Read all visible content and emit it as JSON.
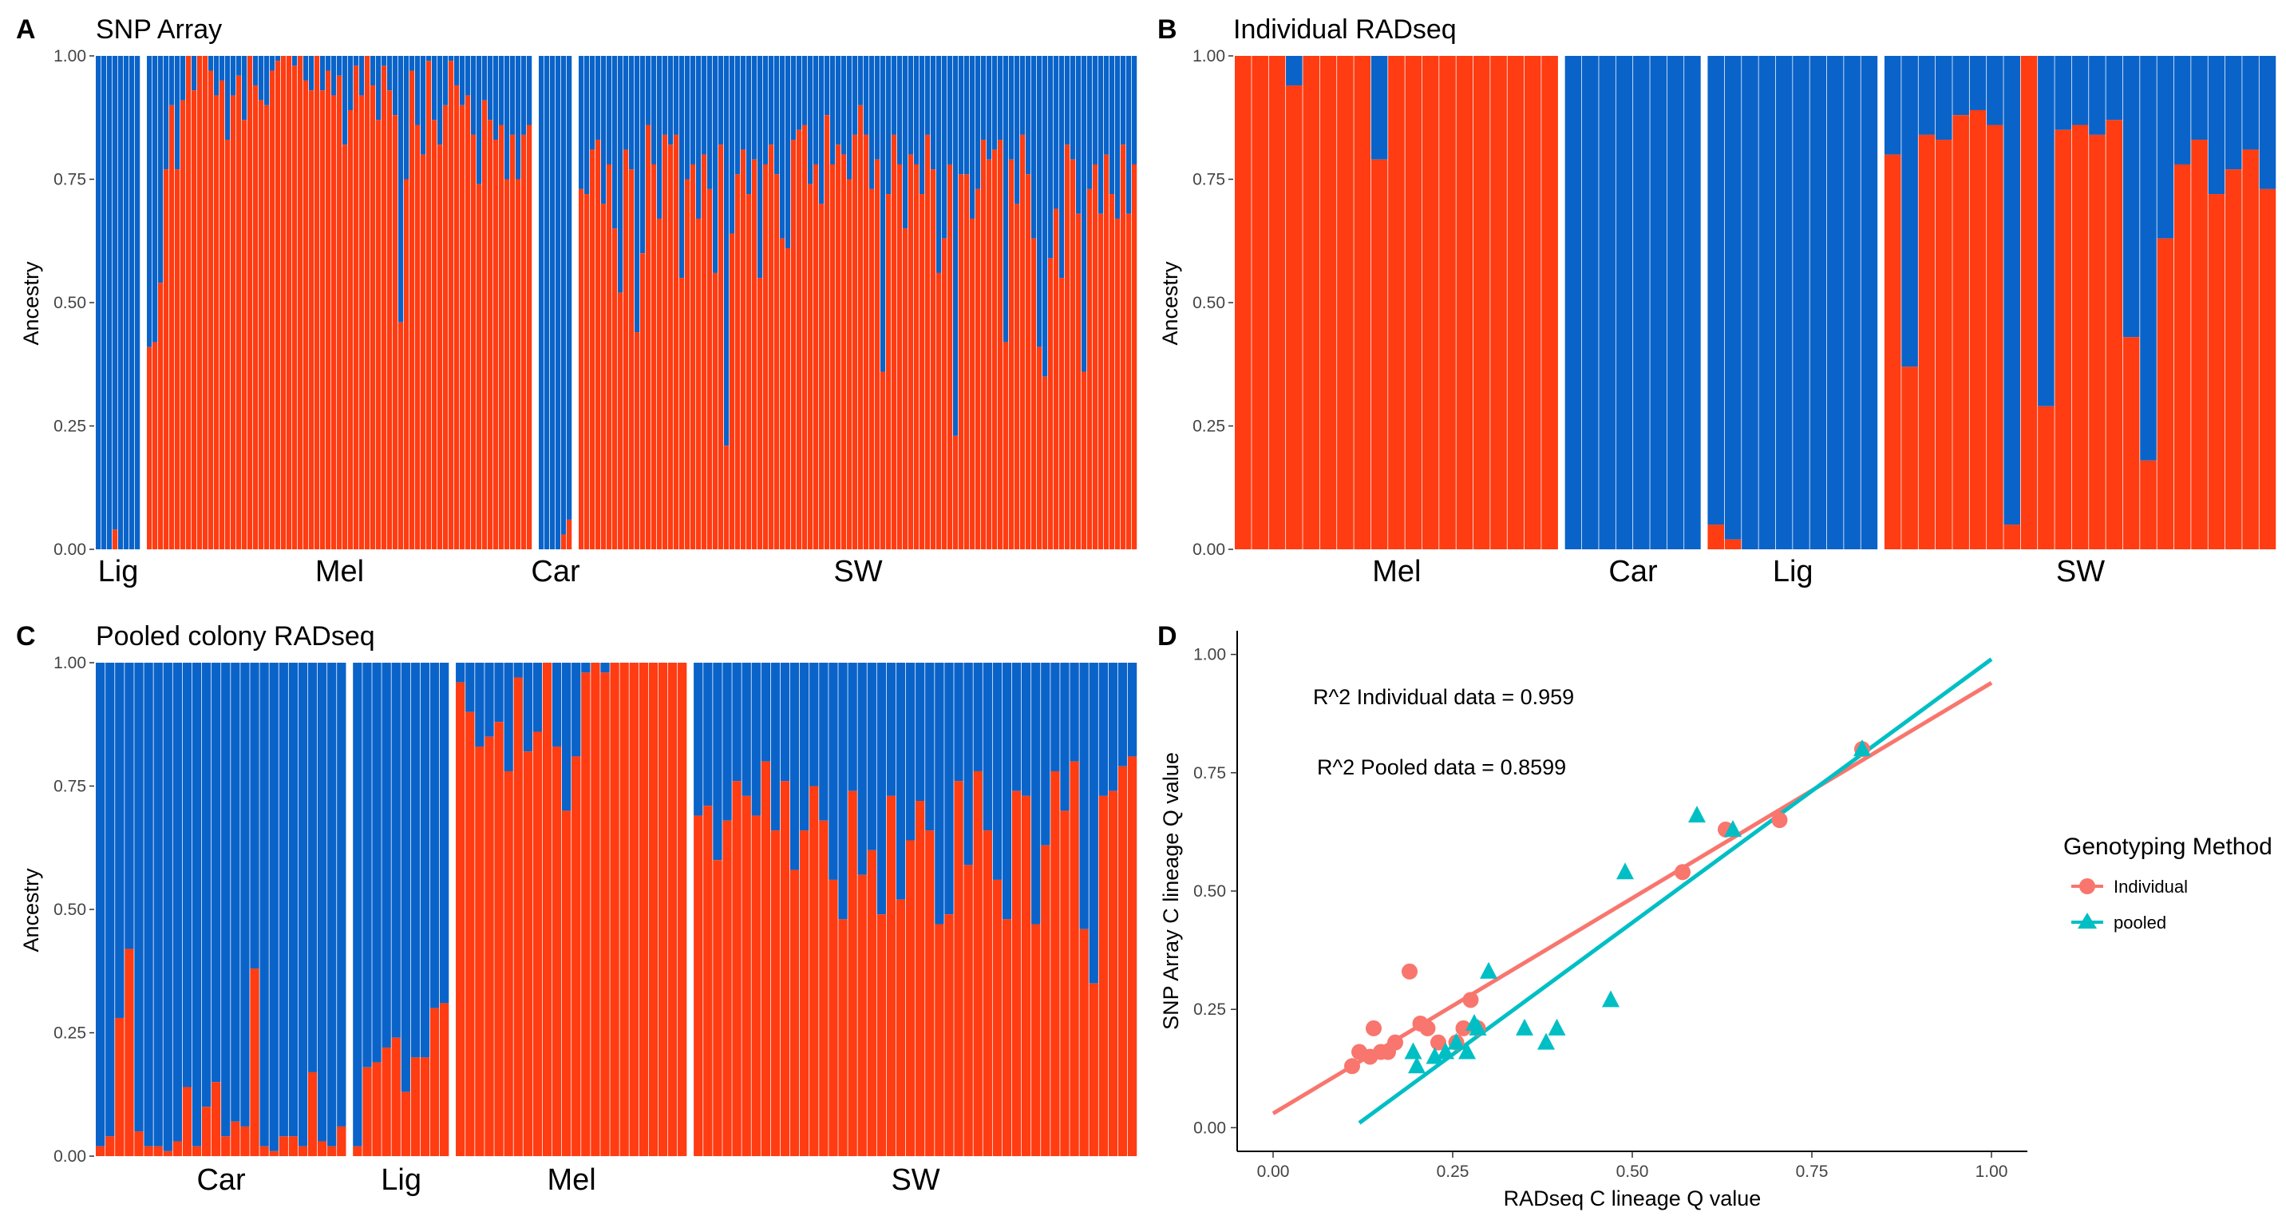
{
  "figure": {
    "colors": {
      "blue": "#0a63c9",
      "red": "#ff3c12",
      "salmon": "#f8766d",
      "teal": "#00bfc4",
      "gap": "#ffffff"
    }
  },
  "chart_data": [
    {
      "panel": "A",
      "title": "SNP Array",
      "type": "bar",
      "stacked": true,
      "ylabel": "Ancestry",
      "ylim": [
        0,
        1
      ],
      "yticks": [
        "0.00",
        "0.25",
        "0.50",
        "0.75",
        "1.00"
      ],
      "series_names": [
        "C lineage (red)",
        "other lineage (blue)"
      ],
      "groups": [
        {
          "name": "Lig",
          "values": [
            0,
            0,
            0,
            0.04,
            0,
            0,
            0,
            0
          ]
        },
        {
          "name": "Mel",
          "values": [
            0.41,
            0.42,
            0.54,
            0.77,
            0.9,
            0.77,
            0.91,
            1,
            0.93,
            1,
            1,
            0.97,
            0.92,
            0.95,
            0.83,
            0.92,
            0.96,
            0.87,
            1,
            0.94,
            0.91,
            0.9,
            0.97,
            0.99,
            1,
            1,
            0.98,
            1,
            0.95,
            0.93,
            1,
            0.93,
            0.97,
            0.92,
            0.96,
            0.82,
            0.89,
            0.98,
            0.92,
            1,
            0.94,
            0.87,
            0.98,
            0.93,
            0.88,
            0.46,
            0.75,
            0.97,
            0.86,
            0.8,
            0.99,
            0.87,
            0.82,
            0.9,
            0.99,
            0.94,
            0.9,
            0.92,
            0.84,
            0.74,
            0.91,
            0.87,
            0.83,
            0.86,
            0.75,
            0.84,
            0.75,
            0.84,
            0.86
          ]
        },
        {
          "name": "Car",
          "values": [
            0,
            0,
            0,
            0,
            0.03,
            0.06
          ]
        },
        {
          "name": "SW",
          "values": [
            0.73,
            0.72,
            0.81,
            0.83,
            0.7,
            0.78,
            0.65,
            0.52,
            0.81,
            0.77,
            0.44,
            0.6,
            0.86,
            0.78,
            0.67,
            0.84,
            0.82,
            0.84,
            0.55,
            0.75,
            0.78,
            0.67,
            0.8,
            0.73,
            0.56,
            0.82,
            0.21,
            0.64,
            0.76,
            0.81,
            0.72,
            0.79,
            0.55,
            0.78,
            0.82,
            0.76,
            0.63,
            0.61,
            0.83,
            0.85,
            0.86,
            0.74,
            0.78,
            0.7,
            0.88,
            0.78,
            0.82,
            0.8,
            0.75,
            0.84,
            0.9,
            0.84,
            0.73,
            0.79,
            0.36,
            0.72,
            0.84,
            0.78,
            0.65,
            0.8,
            0.78,
            0.72,
            0.84,
            0.77,
            0.56,
            0.63,
            0.78,
            0.23,
            0.76,
            0.76,
            0.67,
            0.73,
            0.83,
            0.79,
            0.81,
            0.83,
            0.42,
            0.79,
            0.7,
            0.84,
            0.76,
            0.63,
            0.41,
            0.35,
            0.59,
            0.69,
            0.55,
            0.82,
            0.79,
            0.68,
            0.36,
            0.73,
            0.78,
            0.68,
            0.8,
            0.72,
            0.67,
            0.82,
            0.68,
            0.78
          ]
        }
      ]
    },
    {
      "panel": "B",
      "title": "Individual RADseq",
      "type": "bar",
      "stacked": true,
      "ylabel": "Ancestry",
      "ylim": [
        0,
        1
      ],
      "yticks": [
        "0.00",
        "0.25",
        "0.50",
        "0.75",
        "1.00"
      ],
      "series_names": [
        "C lineage (red)",
        "other lineage (blue)"
      ],
      "groups": [
        {
          "name": "Mel",
          "values": [
            1,
            1,
            1,
            0.94,
            1,
            1,
            1,
            1,
            0.79,
            1,
            1,
            1,
            1,
            1,
            1,
            1,
            1,
            1,
            1
          ]
        },
        {
          "name": "Car",
          "values": [
            0,
            0,
            0,
            0,
            0,
            0,
            0,
            0
          ]
        },
        {
          "name": "Lig",
          "values": [
            0.05,
            0.02,
            0,
            0,
            0,
            0,
            0,
            0,
            0,
            0
          ]
        },
        {
          "name": "SW",
          "values": [
            0.8,
            0.37,
            0.84,
            0.83,
            0.88,
            0.89,
            0.86,
            0.05,
            1,
            0.29,
            0.85,
            0.86,
            0.84,
            0.87,
            0.43,
            0.18,
            0.63,
            0.78,
            0.83,
            0.72,
            0.77,
            0.81,
            0.73
          ]
        }
      ]
    },
    {
      "panel": "C",
      "title": "Pooled colony RADseq",
      "type": "bar",
      "stacked": true,
      "ylabel": "Ancestry",
      "ylim": [
        0,
        1
      ],
      "yticks": [
        "0.00",
        "0.25",
        "0.50",
        "0.75",
        "1.00"
      ],
      "series_names": [
        "C lineage (red)",
        "other lineage (blue)"
      ],
      "groups": [
        {
          "name": "Car",
          "values": [
            0.02,
            0.04,
            0.28,
            0.42,
            0.05,
            0.02,
            0.02,
            0.01,
            0.03,
            0.14,
            0.02,
            0.1,
            0.15,
            0.04,
            0.07,
            0.06,
            0.38,
            0.02,
            0.01,
            0.04,
            0.04,
            0.02,
            0.17,
            0.03,
            0.02,
            0.06
          ]
        },
        {
          "name": "Lig",
          "values": [
            0.02,
            0.18,
            0.19,
            0.22,
            0.24,
            0.13,
            0.2,
            0.2,
            0.3,
            0.31
          ]
        },
        {
          "name": "Mel",
          "values": [
            0.96,
            0.9,
            0.83,
            0.85,
            0.88,
            0.78,
            0.97,
            0.82,
            0.86,
            1,
            0.83,
            0.7,
            0.81,
            0.98,
            1,
            0.98,
            1,
            1,
            1,
            1,
            1,
            1,
            1,
            1
          ]
        },
        {
          "name": "SW",
          "values": [
            0.69,
            0.71,
            0.6,
            0.68,
            0.76,
            0.73,
            0.69,
            0.8,
            0.66,
            0.76,
            0.58,
            0.66,
            0.75,
            0.68,
            0.56,
            0.48,
            0.74,
            0.57,
            0.62,
            0.49,
            0.73,
            0.52,
            0.64,
            0.72,
            0.66,
            0.47,
            0.49,
            0.76,
            0.59,
            0.78,
            0.66,
            0.56,
            0.48,
            0.74,
            0.73,
            0.47,
            0.63,
            0.78,
            0.7,
            0.8,
            0.46,
            0.35,
            0.73,
            0.74,
            0.79,
            0.81
          ]
        }
      ]
    },
    {
      "panel": "D",
      "title": "",
      "type": "scatter",
      "xlabel": "RADseq C lineage Q value",
      "ylabel": "SNP Array C lineage Q value",
      "xlim": [
        -0.05,
        1.05
      ],
      "ylim": [
        -0.05,
        1.05
      ],
      "xticks": [
        "0.00",
        "0.25",
        "0.50",
        "0.75",
        "1.00"
      ],
      "yticks": [
        "0.00",
        "0.25",
        "0.50",
        "0.75",
        "1.00"
      ],
      "legend": {
        "title": "Genotyping Method",
        "position": "right"
      },
      "annotations": [
        "R^2 Individual data = 0.959",
        "R^2 Pooled data = 0.8599"
      ],
      "series": [
        {
          "name": "Individual",
          "marker": "circle",
          "color": "#f8766d",
          "line": {
            "x1": 0.0,
            "y1": 0.03,
            "x2": 1.0,
            "y2": 0.94
          },
          "points": [
            [
              0.11,
              0.13
            ],
            [
              0.12,
              0.16
            ],
            [
              0.135,
              0.15
            ],
            [
              0.14,
              0.21
            ],
            [
              0.15,
              0.16
            ],
            [
              0.16,
              0.16
            ],
            [
              0.17,
              0.18
            ],
            [
              0.19,
              0.33
            ],
            [
              0.205,
              0.22
            ],
            [
              0.215,
              0.21
            ],
            [
              0.23,
              0.18
            ],
            [
              0.255,
              0.18
            ],
            [
              0.265,
              0.21
            ],
            [
              0.275,
              0.27
            ],
            [
              0.285,
              0.21
            ],
            [
              0.57,
              0.54
            ],
            [
              0.63,
              0.63
            ],
            [
              0.705,
              0.65
            ],
            [
              0.82,
              0.8
            ]
          ]
        },
        {
          "name": "pooled",
          "marker": "triangle",
          "color": "#00bfc4",
          "line": {
            "x1": 0.12,
            "y1": 0.01,
            "x2": 1.0,
            "y2": 0.99
          },
          "points": [
            [
              0.195,
              0.16
            ],
            [
              0.2,
              0.13
            ],
            [
              0.225,
              0.15
            ],
            [
              0.24,
              0.16
            ],
            [
              0.255,
              0.18
            ],
            [
              0.27,
              0.16
            ],
            [
              0.28,
              0.22
            ],
            [
              0.285,
              0.21
            ],
            [
              0.3,
              0.33
            ],
            [
              0.35,
              0.21
            ],
            [
              0.38,
              0.18
            ],
            [
              0.395,
              0.21
            ],
            [
              0.47,
              0.27
            ],
            [
              0.49,
              0.54
            ],
            [
              0.59,
              0.66
            ],
            [
              0.64,
              0.63
            ],
            [
              0.82,
              0.8
            ]
          ]
        }
      ]
    }
  ]
}
